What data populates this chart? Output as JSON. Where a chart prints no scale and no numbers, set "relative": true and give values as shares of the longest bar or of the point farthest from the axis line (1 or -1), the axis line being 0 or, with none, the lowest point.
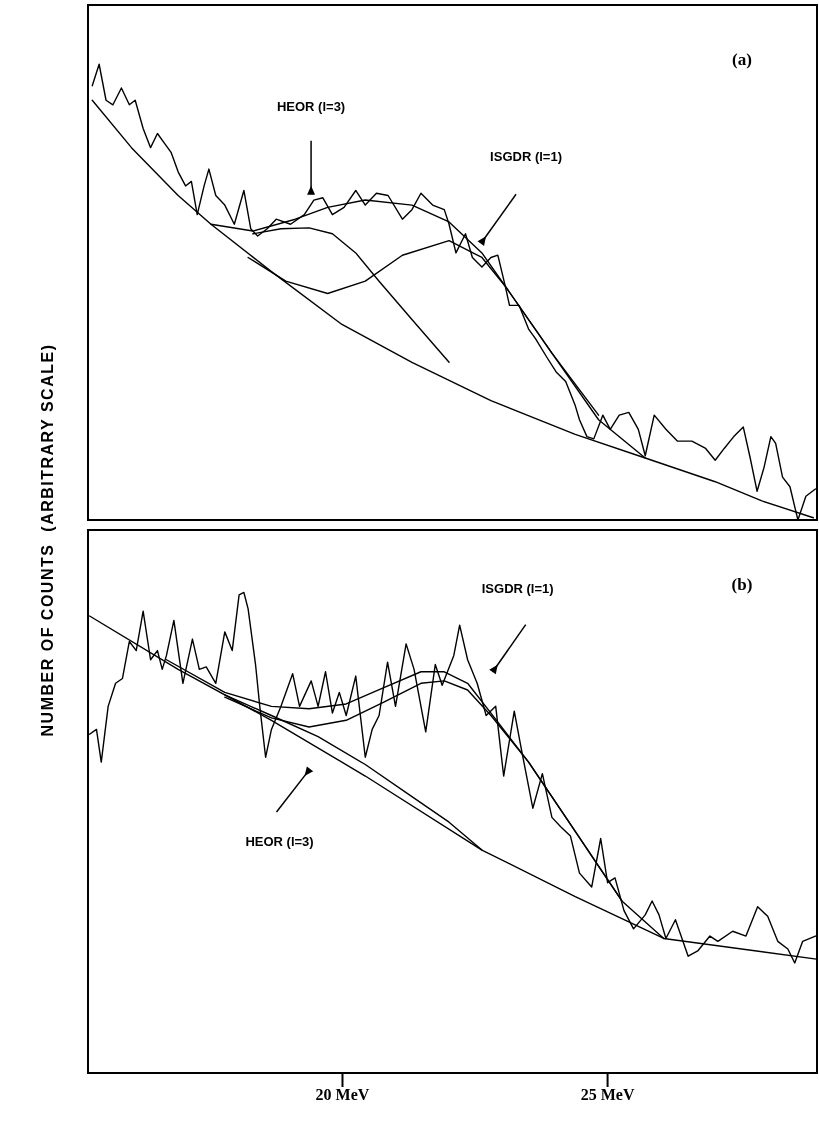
{
  "chart_data": [
    {
      "type": "line",
      "title": "(a)",
      "ylabel": "NUMBER OF COUNTS  (ARBITRARY SCALE)",
      "relative": true,
      "xlim": [
        15.2,
        28.95
      ],
      "tick_labels": false,
      "marker": "none",
      "line_style": "solid",
      "annotations": [
        "HEOR (l=3)",
        "ISGDR (l=1)"
      ],
      "series": [
        {
          "color": "#000000",
          "x": [
            15.28,
            15.41,
            15.54,
            15.67,
            15.83,
            15.98,
            16.09,
            16.24,
            16.38,
            16.51,
            16.64,
            16.77,
            16.9,
            17.04,
            17.15,
            17.26,
            17.39,
            17.48,
            17.61,
            17.78,
            17.96,
            18.14,
            18.27,
            18.4,
            18.58,
            18.75,
            19.02,
            19.28,
            19.46,
            19.63,
            19.81,
            20.03,
            20.25,
            20.43,
            20.64,
            20.86,
            21.13,
            21.31,
            21.48,
            21.7,
            21.92,
            22.01,
            22.14,
            22.32,
            22.45,
            22.63,
            22.8,
            22.93,
            23.07,
            23.15,
            23.33,
            23.51,
            23.64,
            23.86,
            24.03,
            24.21,
            24.39,
            24.47,
            24.61,
            24.74,
            24.91,
            25.05,
            25.22,
            25.4,
            25.58,
            25.71,
            25.88,
            26.1,
            26.32,
            26.59,
            26.85,
            27.03,
            27.2,
            27.38,
            27.56,
            27.69,
            27.82,
            27.95,
            28.08,
            28.17,
            28.3,
            28.44,
            28.59,
            28.74,
            28.92
          ],
          "values": [
            0.953,
            1.0,
            0.921,
            0.911,
            0.948,
            0.911,
            0.921,
            0.859,
            0.817,
            0.848,
            0.827,
            0.806,
            0.764,
            0.733,
            0.743,
            0.67,
            0.733,
            0.77,
            0.712,
            0.691,
            0.649,
            0.723,
            0.639,
            0.623,
            0.639,
            0.66,
            0.649,
            0.67,
            0.702,
            0.707,
            0.67,
            0.686,
            0.723,
            0.691,
            0.717,
            0.712,
            0.66,
            0.681,
            0.717,
            0.691,
            0.681,
            0.649,
            0.586,
            0.628,
            0.576,
            0.555,
            0.576,
            0.581,
            0.513,
            0.471,
            0.471,
            0.419,
            0.398,
            0.356,
            0.325,
            0.304,
            0.251,
            0.22,
            0.183,
            0.178,
            0.23,
            0.199,
            0.23,
            0.236,
            0.199,
            0.141,
            0.23,
            0.199,
            0.173,
            0.173,
            0.157,
            0.131,
            0.157,
            0.183,
            0.204,
            0.136,
            0.063,
            0.115,
            0.183,
            0.168,
            0.094,
            0.073,
            0,
            0.052,
            0.068
          ]
        },
        {
          "color": "#000000",
          "x": [
            15.28,
            16.02,
            16.9,
            17.52,
            18.66,
            19.99,
            21.31,
            22.8,
            24.39,
            25.71,
            27.03,
            27.91,
            28.88
          ],
          "values": [
            0.921,
            0.817,
            0.712,
            0.649,
            0.545,
            0.429,
            0.346,
            0.262,
            0.188,
            0.136,
            0.084,
            0.042,
            0.005
          ]
        },
        {
          "color": "#000000",
          "x": [
            18.31,
            18.84,
            19.37,
            19.81,
            20.25,
            20.69,
            21.31,
            22.01
          ],
          "values": [
            0.628,
            0.639,
            0.641,
            0.628,
            0.586,
            0.524,
            0.44,
            0.346
          ]
        },
        {
          "color": "#000000",
          "x": [
            18.22,
            18.93,
            19.72,
            20.43,
            21.13,
            22.01,
            22.63,
            23.07,
            23.95,
            24.83
          ],
          "values": [
            0.576,
            0.524,
            0.497,
            0.524,
            0.581,
            0.613,
            0.576,
            0.513,
            0.366,
            0.23
          ]
        },
        {
          "color": "#000000",
          "x": [
            17.52,
            18.31,
            19.11,
            19.72,
            20.43,
            21.31,
            22.01,
            22.63,
            23.07,
            23.95,
            24.83,
            25.71
          ],
          "values": [
            0.649,
            0.634,
            0.66,
            0.686,
            0.702,
            0.691,
            0.654,
            0.586,
            0.513,
            0.366,
            0.22,
            0.136
          ]
        }
      ]
    },
    {
      "type": "line",
      "title": "(b)",
      "relative": true,
      "xlim": [
        15.2,
        28.95
      ],
      "xticks": [
        {
          "value": 20,
          "label": "20 MeV"
        },
        {
          "value": 25,
          "label": "25 MeV"
        }
      ],
      "tick_labels": "x",
      "marker": "none",
      "line_style": "solid",
      "annotations": [
        "ISGDR (l=1)",
        "HEOR (l=3)"
      ],
      "series": [
        {
          "color": "#000000",
          "x": [
            15.23,
            15.36,
            15.45,
            15.58,
            15.72,
            15.85,
            15.98,
            16.11,
            16.24,
            16.38,
            16.51,
            16.6,
            16.68,
            16.82,
            16.99,
            17.17,
            17.3,
            17.43,
            17.61,
            17.78,
            17.92,
            18.05,
            18.14,
            18.22,
            18.36,
            18.44,
            18.55,
            18.66,
            18.84,
            19.06,
            19.19,
            19.41,
            19.54,
            19.68,
            19.81,
            19.94,
            20.07,
            20.25,
            20.43,
            20.56,
            20.69,
            20.85,
            21.0,
            21.2,
            21.35,
            21.57,
            21.75,
            21.88,
            22.1,
            22.21,
            22.36,
            22.54,
            22.71,
            22.89,
            23.04,
            23.24,
            23.37,
            23.59,
            23.77,
            23.95,
            24.12,
            24.3,
            24.47,
            24.7,
            24.87,
            25.0,
            25.14,
            25.31,
            25.49,
            25.71,
            25.84,
            25.97,
            26.1,
            26.28,
            26.52,
            26.7,
            26.93,
            27.08,
            27.36,
            27.61,
            27.83,
            28.02,
            28.21,
            28.4,
            28.53,
            28.68,
            28.92
          ],
          "values": [
            0.705,
            0.715,
            0.647,
            0.763,
            0.811,
            0.821,
            0.898,
            0.879,
            0.961,
            0.86,
            0.879,
            0.84,
            0.869,
            0.942,
            0.811,
            0.903,
            0.84,
            0.845,
            0.811,
            0.918,
            0.879,
            0.995,
            1.0,
            0.966,
            0.85,
            0.763,
            0.657,
            0.715,
            0.763,
            0.831,
            0.763,
            0.816,
            0.763,
            0.835,
            0.749,
            0.792,
            0.744,
            0.826,
            0.657,
            0.715,
            0.744,
            0.855,
            0.763,
            0.893,
            0.84,
            0.71,
            0.85,
            0.807,
            0.869,
            0.932,
            0.86,
            0.811,
            0.744,
            0.763,
            0.618,
            0.753,
            0.676,
            0.551,
            0.623,
            0.532,
            0.512,
            0.493,
            0.416,
            0.387,
            0.488,
            0.396,
            0.406,
            0.338,
            0.3,
            0.329,
            0.358,
            0.329,
            0.28,
            0.319,
            0.243,
            0.254,
            0.285,
            0.274,
            0.295,
            0.285,
            0.346,
            0.326,
            0.274,
            0.258,
            0.229,
            0.274,
            0.285
          ]
        },
        {
          "color": "#000000",
          "x": [
            15.23,
            16.9,
            18.66,
            20.43,
            22.63,
            24.39,
            26.06,
            28.94
          ],
          "values": [
            0.951,
            0.84,
            0.734,
            0.618,
            0.464,
            0.367,
            0.28,
            0.237
          ]
        },
        {
          "color": "#000000",
          "x": [
            17.78,
            18.66,
            19.54,
            20.43,
            21.31,
            22.01,
            22.63
          ],
          "values": [
            0.787,
            0.744,
            0.7,
            0.642,
            0.575,
            0.522,
            0.464
          ]
        },
        {
          "color": "#000000",
          "x": [
            17.78,
            18.66,
            19.37,
            20.07,
            20.78,
            21.48,
            21.92,
            22.36,
            22.8,
            23.51,
            24.39,
            25.27
          ],
          "values": [
            0.782,
            0.739,
            0.72,
            0.734,
            0.772,
            0.811,
            0.816,
            0.797,
            0.744,
            0.647,
            0.503,
            0.358
          ]
        },
        {
          "color": "#000000",
          "x": [
            16.68,
            17.78,
            18.66,
            19.37,
            20.07,
            20.78,
            21.48,
            21.92,
            22.36,
            22.8,
            23.51,
            24.39,
            25.27,
            26.06
          ],
          "values": [
            0.86,
            0.792,
            0.763,
            0.758,
            0.768,
            0.802,
            0.835,
            0.835,
            0.811,
            0.749,
            0.647,
            0.503,
            0.358,
            0.28
          ]
        }
      ]
    }
  ]
}
